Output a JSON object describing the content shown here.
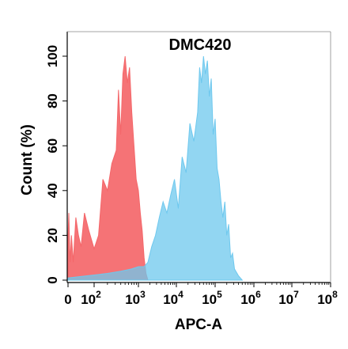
{
  "chart_data": {
    "type": "area",
    "title": "DMC420",
    "xlabel": "APC-A",
    "ylabel": "Count  (%)",
    "x_scale": "log",
    "xlim": [
      0,
      100000000
    ],
    "ylim": [
      0,
      110
    ],
    "x_ticks": [
      {
        "value": 0,
        "base": "0",
        "exp": ""
      },
      {
        "value": 100,
        "base": "10",
        "exp": "2"
      },
      {
        "value": 1000,
        "base": "10",
        "exp": "3"
      },
      {
        "value": 10000,
        "base": "10",
        "exp": "4"
      },
      {
        "value": 100000,
        "base": "10",
        "exp": "5"
      },
      {
        "value": 1000000,
        "base": "10",
        "exp": "6"
      },
      {
        "value": 10000000,
        "base": "10",
        "exp": "7"
      },
      {
        "value": 100000000,
        "base": "10",
        "exp": "8"
      }
    ],
    "y_ticks": [
      "0",
      "20",
      "40",
      "60",
      "80",
      "100"
    ],
    "y_tick_values": [
      0,
      20,
      40,
      60,
      80,
      100
    ],
    "grid": false,
    "series": [
      {
        "color": "#f4676a",
        "x": [
          0,
          3,
          8,
          13,
          20,
          30,
          40,
          50,
          63,
          80,
          100,
          126,
          158,
          200,
          251,
          316,
          355,
          398,
          447,
          501,
          562,
          631,
          708,
          794,
          891,
          1000,
          1122,
          1259,
          1413,
          1585,
          1778
        ],
        "y": [
          20,
          30,
          8,
          20,
          8,
          28,
          20,
          15,
          30,
          22,
          14,
          20,
          45,
          40,
          52,
          58,
          85,
          65,
          92,
          100,
          88,
          95,
          75,
          60,
          45,
          40,
          30,
          22,
          10,
          3,
          0
        ]
      },
      {
        "color": "#6ec8ee",
        "x": [
          0,
          80,
          200,
          400,
          700,
          1000,
          1413,
          1778,
          2239,
          2818,
          3548,
          4467,
          5623,
          7079,
          8913,
          11220,
          14125,
          17783,
          22387,
          28184,
          35481,
          39811,
          44668,
          50119,
          56234,
          63096,
          70795,
          79433,
          89125,
          100000,
          112202,
          125893,
          141254,
          158489,
          177828,
          199526,
          223872,
          251189,
          281838,
          316228,
          398107,
          501187
        ],
        "y": [
          1,
          2,
          3,
          4,
          5,
          6,
          6,
          8,
          15,
          20,
          28,
          35,
          30,
          38,
          45,
          32,
          55,
          48,
          70,
          62,
          75,
          95,
          88,
          100,
          92,
          98,
          82,
          90,
          65,
          72,
          50,
          45,
          35,
          28,
          35,
          20,
          25,
          10,
          12,
          5,
          2,
          0
        ]
      }
    ]
  }
}
